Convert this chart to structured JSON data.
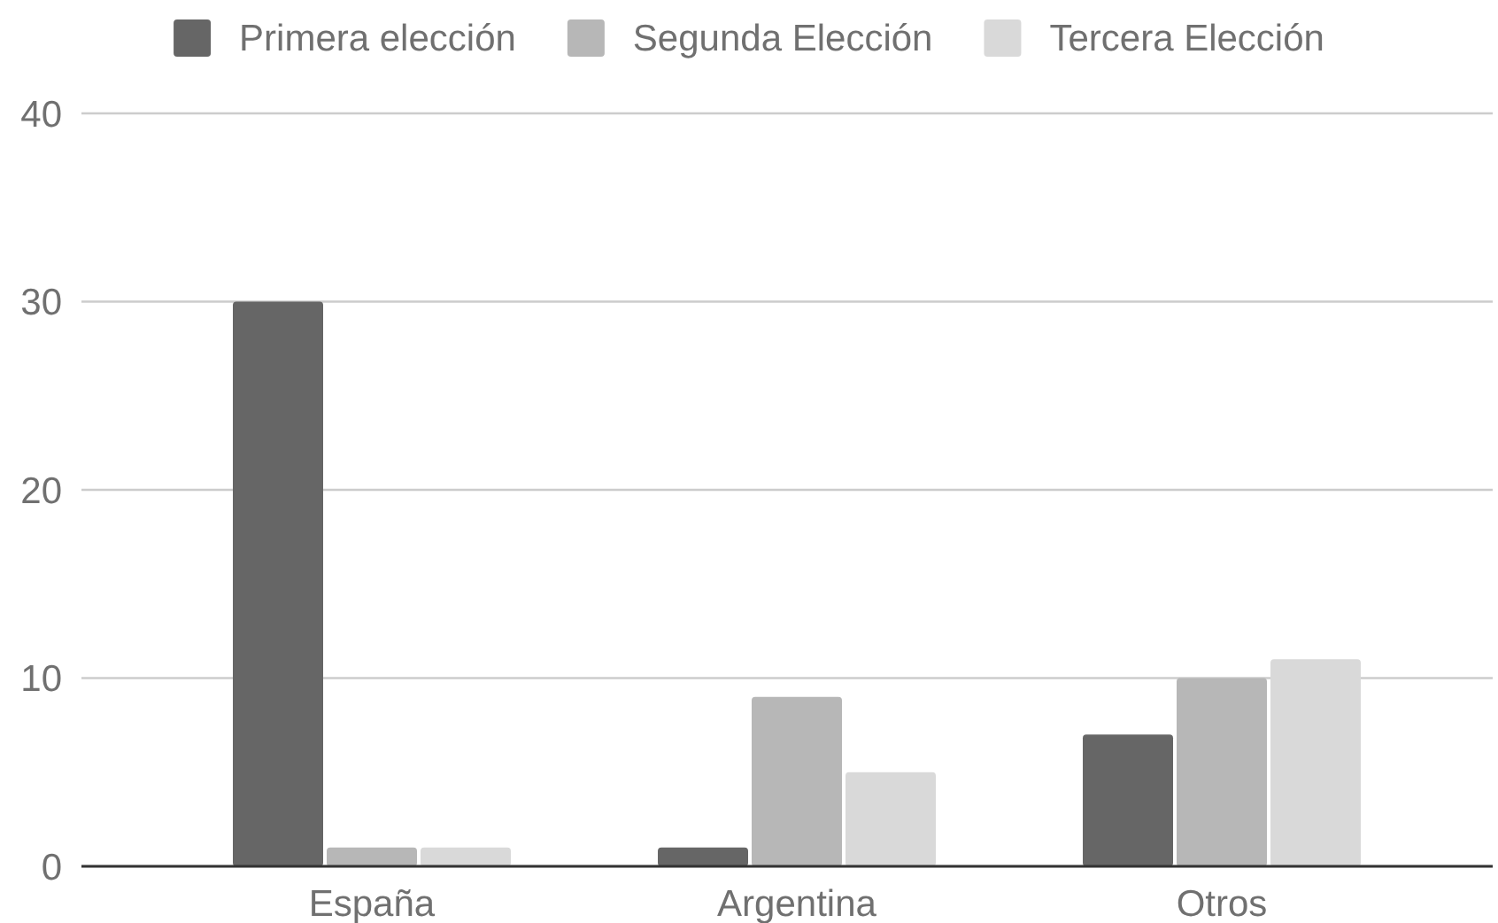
{
  "chart_data": {
    "type": "bar",
    "categories": [
      "España",
      "Argentina",
      "Otros"
    ],
    "series": [
      {
        "name": "Primera elección",
        "color": "#666666",
        "values": [
          30,
          1,
          7
        ]
      },
      {
        "name": "Segunda Elección",
        "color": "#b7b7b7",
        "values": [
          1,
          9,
          10
        ]
      },
      {
        "name": "Tercera Elección",
        "color": "#d9d9d9",
        "values": [
          1,
          5,
          11
        ]
      }
    ],
    "ylim": [
      0,
      40
    ],
    "yticks": [
      0,
      10,
      20,
      30,
      40
    ],
    "grid": "y",
    "legend": "top"
  }
}
